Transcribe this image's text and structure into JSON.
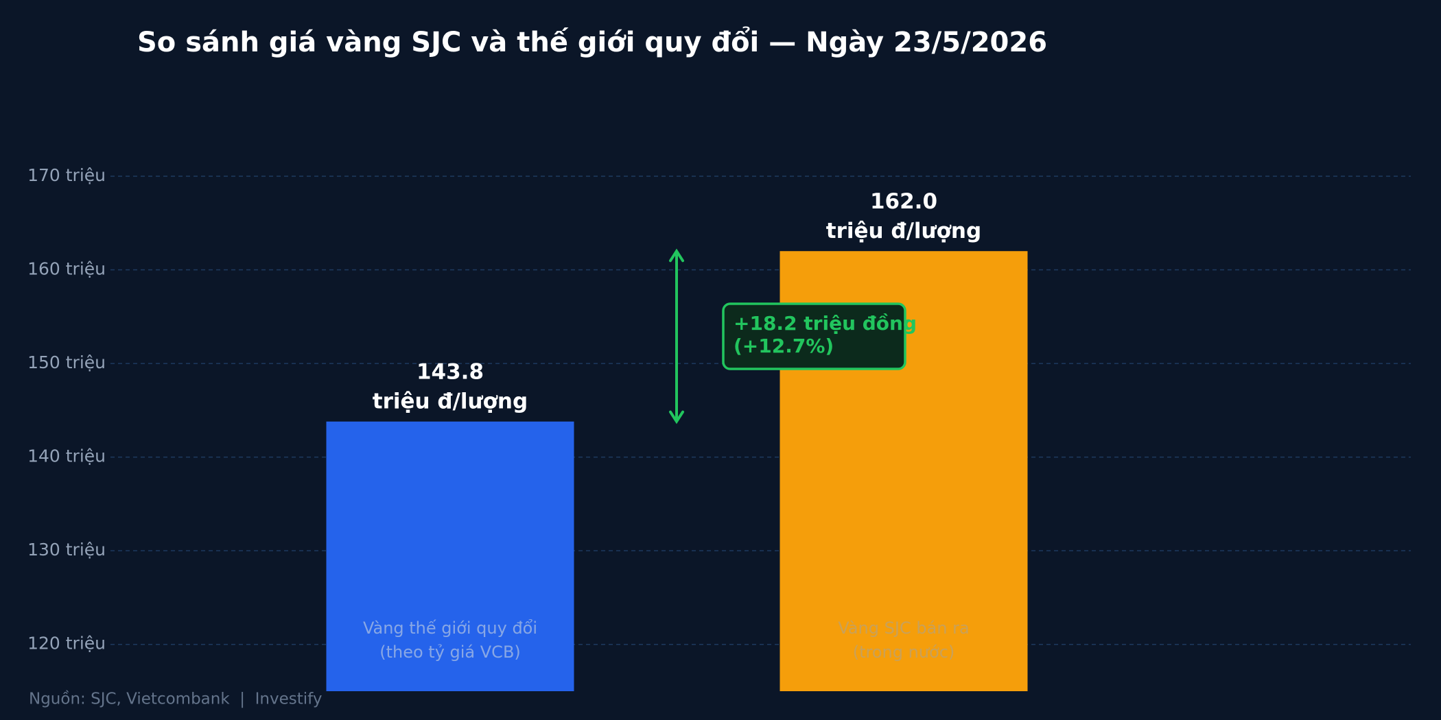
{
  "chart_data": {
    "type": "bar",
    "title": "So sánh giá vàng SJC và thế giới quy đổi — Ngày 23/5/2026",
    "categories": [
      "Vàng thế giới quy đổi\n(theo tỷ giá VCB)",
      "Vàng SJC bán ra\n(trong nước)"
    ],
    "values": [
      143.8,
      162.0
    ],
    "value_labels": [
      "143.8\ntriệu đ/lượng",
      "162.0\ntriệu đ/lượng"
    ],
    "colors": [
      "#2563eb",
      "#f59e0b"
    ],
    "ylim": [
      115,
      175
    ],
    "yticks": [
      {
        "value": 120,
        "label": "120 triệu"
      },
      {
        "value": 130,
        "label": "130 triệu"
      },
      {
        "value": 140,
        "label": "140 triệu"
      },
      {
        "value": 150,
        "label": "150 triệu"
      },
      {
        "value": 160,
        "label": "160 triệu"
      },
      {
        "value": 170,
        "label": "170 triệu"
      }
    ],
    "grid": true,
    "annotation": {
      "text": "+18.2 triệu đồng\n(+12.7%)",
      "color": "#22c55e"
    },
    "source": "Nguồn: SJC, Vietcombank  |  Investify"
  }
}
